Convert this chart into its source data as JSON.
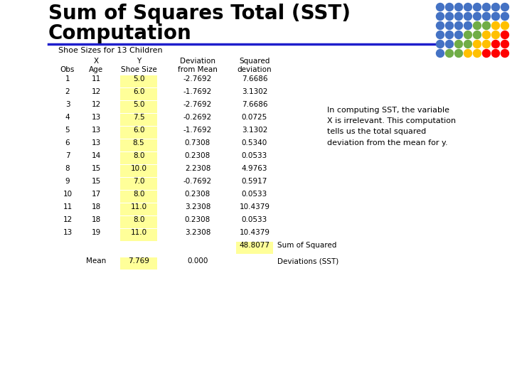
{
  "title1": "Sum of Squares Total (SST)",
  "title2": "Computation",
  "subtitle": "Shoe Sizes for 13 Children",
  "rows": [
    [
      1,
      11,
      5.0,
      -2.7692,
      7.6686
    ],
    [
      2,
      12,
      6.0,
      -1.7692,
      3.1302
    ],
    [
      3,
      12,
      5.0,
      -2.7692,
      7.6686
    ],
    [
      4,
      13,
      7.5,
      -0.2692,
      0.0725
    ],
    [
      5,
      13,
      6.0,
      -1.7692,
      3.1302
    ],
    [
      6,
      13,
      8.5,
      0.7308,
      0.534
    ],
    [
      7,
      14,
      8.0,
      0.2308,
      0.0533
    ],
    [
      8,
      15,
      10.0,
      2.2308,
      4.9763
    ],
    [
      9,
      15,
      7.0,
      -0.7692,
      0.5917
    ],
    [
      10,
      17,
      8.0,
      0.2308,
      0.0533
    ],
    [
      11,
      18,
      11.0,
      3.2308,
      10.4379
    ],
    [
      12,
      18,
      8.0,
      0.2308,
      0.0533
    ],
    [
      13,
      19,
      11.0,
      3.2308,
      10.4379
    ]
  ],
  "sum_squared": 48.8077,
  "mean_shoe": 7.769,
  "mean_dev": 0.0,
  "annotation": "In computing SST, the variable\nX is irrelevant. This computation\ntells us the total squared\ndeviation from the mean for y.",
  "yellow": "#FFFF99",
  "blue_line": "#1F1FCC",
  "title_color": "#000000",
  "bg_color": "#FFFFFF",
  "dot_grid": [
    [
      "#4472C4",
      "#4472C4",
      "#4472C4",
      "#4472C4",
      "#4472C4",
      "#4472C4",
      "#4472C4",
      "#4472C4"
    ],
    [
      "#4472C4",
      "#4472C4",
      "#4472C4",
      "#4472C4",
      "#4472C4",
      "#4472C4",
      "#4472C4",
      "#4472C4"
    ],
    [
      "#4472C4",
      "#4472C4",
      "#4472C4",
      "#4472C4",
      "#70AD47",
      "#70AD47",
      "#FFC000",
      "#FFC000"
    ],
    [
      "#4472C4",
      "#4472C4",
      "#4472C4",
      "#70AD47",
      "#70AD47",
      "#FFC000",
      "#FFC000",
      "#FF0000"
    ],
    [
      "#4472C4",
      "#4472C4",
      "#70AD47",
      "#70AD47",
      "#FFC000",
      "#FFC000",
      "#FF0000",
      "#FF0000"
    ],
    [
      "#4472C4",
      "#70AD47",
      "#70AD47",
      "#FFC000",
      "#FFC000",
      "#FF0000",
      "#FF0000",
      "#FF0000"
    ]
  ]
}
